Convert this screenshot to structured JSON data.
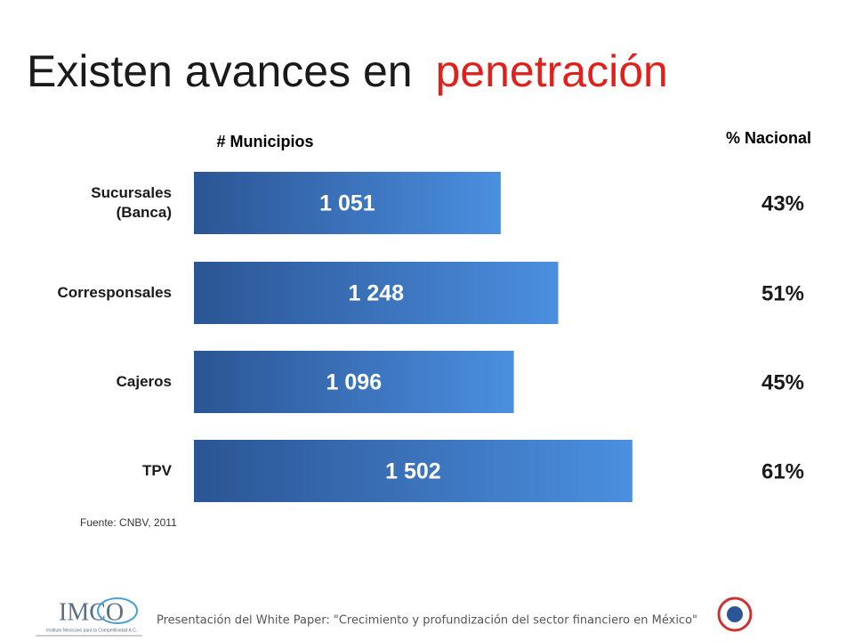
{
  "chart_data": {
    "type": "bar",
    "orientation": "horizontal",
    "title_parts": [
      "Existen avances en",
      "penetración"
    ],
    "title_colors": [
      "#1a1a1a",
      "#e0201b"
    ],
    "value_axis_label": "# Municipios",
    "categories": [
      "Sucursales (Banca)",
      "Corresponsales",
      "Cajeros",
      "TPV"
    ],
    "values": [
      1051,
      1248,
      1096,
      1502
    ],
    "value_labels": [
      "1 051",
      "1 248",
      "1 096",
      "1 502"
    ],
    "color_start": "#2b5594",
    "color_end": "#4b8fe0",
    "xlim": [
      0,
      1600
    ],
    "share": {
      "label": "% Nacional",
      "values": [
        43,
        51,
        45,
        61
      ],
      "value_labels": [
        "43%",
        "51%",
        "45%",
        "61%"
      ]
    },
    "source": "Fuente: CNBV, 2011"
  },
  "footer": {
    "text": "Presentación del White Paper: \"Crecimiento y profundización del sector financiero en México\"",
    "logo_left": "IMCO",
    "logo_left_caption": "Instituto Mexicano para la Competitividad A.C."
  }
}
